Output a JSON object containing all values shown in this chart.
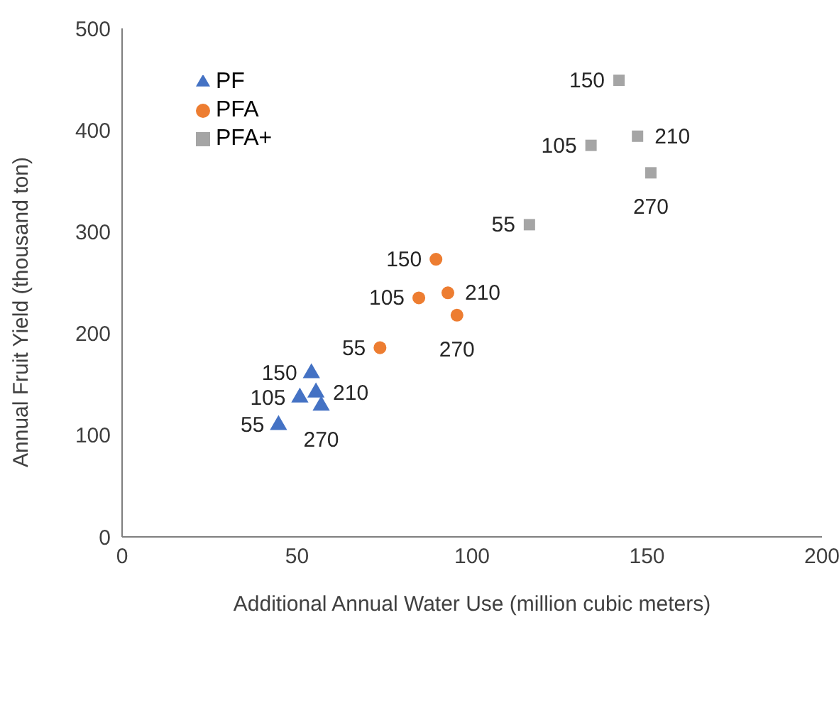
{
  "chart_data": {
    "type": "scatter",
    "xlabel": "Additional Annual Water Use (million cubic meters)",
    "ylabel": "Annual Fruit Yield (thousand ton)",
    "xlim": [
      0,
      200
    ],
    "xticks": [
      0,
      50,
      100,
      150,
      200
    ],
    "ylim": [
      0,
      500
    ],
    "yticks": [
      0,
      100,
      200,
      300,
      400,
      500
    ],
    "grid": false,
    "legend": "top left",
    "series": [
      {
        "name": "PF",
        "color": "#4472c4",
        "marker": "triangle",
        "x": [
          44.7,
          54.1,
          50.8,
          55.4,
          56.9
        ],
        "values": [
          110,
          161,
          137,
          142,
          129
        ]
      },
      {
        "name": "PFA",
        "color": "#ed7d31",
        "marker": "circle",
        "x": [
          73.7,
          89.7,
          84.8,
          93.1,
          95.7
        ],
        "values": [
          186,
          273,
          235,
          240,
          218
        ]
      },
      {
        "name": "PFA+",
        "color": "#a5a5a5",
        "marker": "square",
        "x": [
          116.4,
          142,
          134,
          147.3,
          151.1
        ],
        "values": [
          307,
          449,
          385,
          394,
          358
        ]
      }
    ],
    "annotations": [
      {
        "text": "55",
        "x": 44.7,
        "y": 110
      },
      {
        "text": "150",
        "x": 54.1,
        "y": 161
      },
      {
        "text": "105",
        "x": 50.8,
        "y": 137
      },
      {
        "text": "210",
        "x": 55.4,
        "y": 142
      },
      {
        "text": "270",
        "x": 56.9,
        "y": 129
      },
      {
        "text": "55",
        "x": 73.7,
        "y": 186
      },
      {
        "text": "150",
        "x": 89.7,
        "y": 273
      },
      {
        "text": "105",
        "x": 84.8,
        "y": 235
      },
      {
        "text": "210",
        "x": 93.1,
        "y": 240
      },
      {
        "text": "270",
        "x": 95.7,
        "y": 218
      },
      {
        "text": "55",
        "x": 116.4,
        "y": 307
      },
      {
        "text": "150",
        "x": 142,
        "y": 449
      },
      {
        "text": "105",
        "x": 134,
        "y": 385
      },
      {
        "text": "210",
        "x": 147.3,
        "y": 394
      },
      {
        "text": "270",
        "x": 151.1,
        "y": 358
      }
    ]
  }
}
